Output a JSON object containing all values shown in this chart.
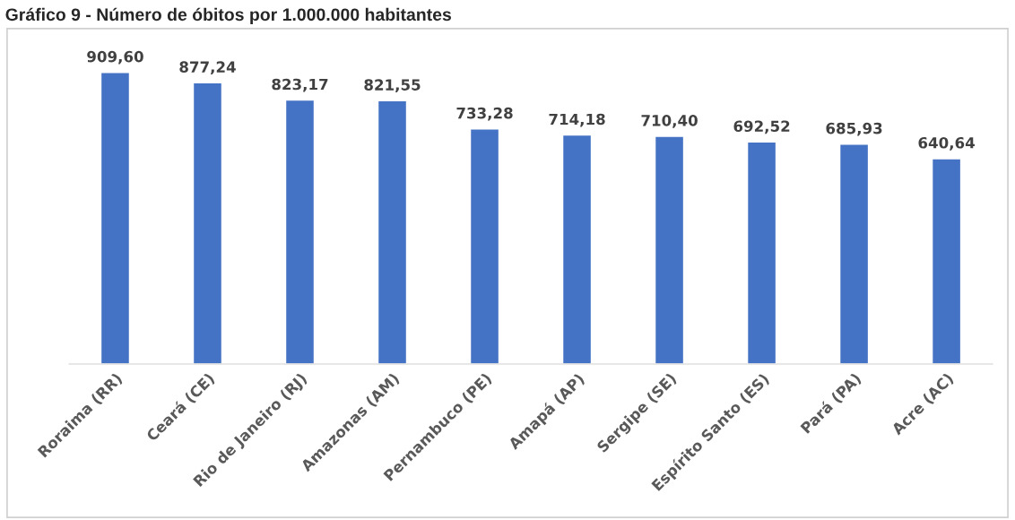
{
  "chart_data": {
    "type": "bar",
    "title": "Gráfico 9 - Número de óbitos por 1.000.000 habitantes",
    "categories": [
      "Roraima (RR)",
      "Ceará (CE)",
      "Rio de Janeiro (RJ)",
      "Amazonas (AM)",
      "Pernambuco (PE)",
      "Amapá (AP)",
      "Sergipe (SE)",
      "Espírito Santo (ES)",
      "Pará (PA)",
      "Acre (AC)"
    ],
    "values": [
      909.6,
      877.24,
      823.17,
      821.55,
      733.28,
      714.18,
      710.4,
      692.52,
      685.93,
      640.64
    ],
    "value_labels": [
      "909,60",
      "877,24",
      "823,17",
      "821,55",
      "733,28",
      "714,18",
      "710,40",
      "692,52",
      "685,93",
      "640,64"
    ],
    "color": "#4472c4",
    "grid": false,
    "legend": false
  }
}
